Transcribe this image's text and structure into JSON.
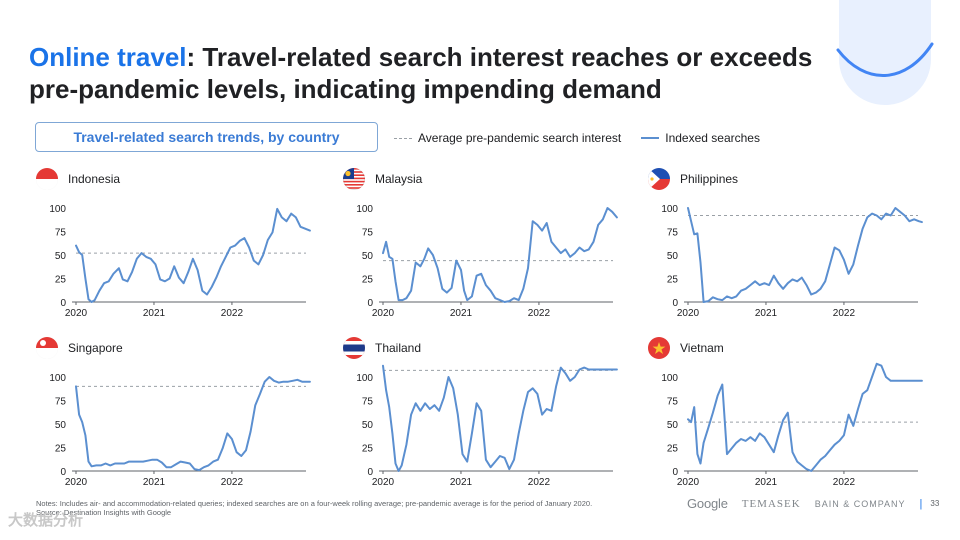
{
  "title": {
    "accent": "Online travel",
    "rest": ": Travel-related search interest reaches or exceeds pre-pandemic levels, indicating impending demand"
  },
  "subtitle": "Travel-related search trends, by country",
  "legend": {
    "average": "Average pre-pandemic search interest",
    "indexed": "Indexed searches"
  },
  "colors": {
    "accent": "#1a73e8",
    "series": "#5b8fd0",
    "baseline": "#9aa0a6"
  },
  "notes": [
    "Notes: Includes air- and accommodation-related queries; indexed searches are on a four-week rolling average; pre-pandemic average is for the period of January 2020.",
    "Source: Destination Insights with Google"
  ],
  "logos": {
    "google": "Google",
    "temasek": "TEMASEK",
    "bain": "BAIN & COMPANY"
  },
  "page_number": "33",
  "watermark": "大数据分析",
  "chart_data": [
    {
      "type": "line",
      "country": "Indonesia",
      "flag": "indonesia",
      "ylim": [
        0,
        100
      ],
      "yticks": [
        "0",
        "25",
        "50",
        "75",
        "100"
      ],
      "xticks": [
        "2020",
        "2021",
        "2022"
      ],
      "baseline": 52,
      "x": [
        2020.0,
        2020.04,
        2020.08,
        2020.12,
        2020.16,
        2020.2,
        2020.24,
        2020.3,
        2020.36,
        2020.42,
        2020.48,
        2020.55,
        2020.6,
        2020.66,
        2020.72,
        2020.78,
        2020.84,
        2020.9,
        2020.96,
        2021.02,
        2021.08,
        2021.14,
        2021.2,
        2021.26,
        2021.32,
        2021.38,
        2021.44,
        2021.5,
        2021.56,
        2021.62,
        2021.68,
        2021.74,
        2021.8,
        2021.86,
        2021.92,
        2021.98,
        2022.04,
        2022.1,
        2022.16,
        2022.22,
        2022.28,
        2022.34,
        2022.4,
        2022.46,
        2022.52,
        2022.58,
        2022.64,
        2022.7,
        2022.76,
        2022.82,
        2022.88,
        2022.94,
        2023.0
      ],
      "y": [
        60,
        53,
        50,
        25,
        3,
        0,
        2,
        12,
        20,
        22,
        30,
        36,
        24,
        22,
        32,
        46,
        52,
        48,
        46,
        40,
        24,
        22,
        25,
        38,
        26,
        20,
        32,
        46,
        34,
        12,
        8,
        16,
        26,
        38,
        48,
        58,
        60,
        65,
        68,
        58,
        44,
        40,
        50,
        66,
        74,
        99,
        90,
        86,
        94,
        90,
        80,
        78,
        76
      ]
    },
    {
      "type": "line",
      "country": "Malaysia",
      "flag": "malaysia",
      "ylim": [
        0,
        100
      ],
      "yticks": [
        "0",
        "25",
        "50",
        "75",
        "100"
      ],
      "xticks": [
        "2020",
        "2021",
        "2022"
      ],
      "baseline": 44,
      "x": [
        2020.0,
        2020.04,
        2020.08,
        2020.12,
        2020.16,
        2020.2,
        2020.25,
        2020.3,
        2020.36,
        2020.42,
        2020.48,
        2020.53,
        2020.58,
        2020.64,
        2020.7,
        2020.76,
        2020.82,
        2020.88,
        2020.94,
        2021.0,
        2021.04,
        2021.08,
        2021.14,
        2021.2,
        2021.26,
        2021.32,
        2021.38,
        2021.44,
        2021.5,
        2021.56,
        2021.62,
        2021.68,
        2021.74,
        2021.8,
        2021.86,
        2021.92,
        2021.98,
        2022.04,
        2022.1,
        2022.16,
        2022.22,
        2022.28,
        2022.34,
        2022.4,
        2022.46,
        2022.52,
        2022.58,
        2022.64,
        2022.7,
        2022.76,
        2022.82,
        2022.88,
        2022.94,
        2023.0
      ],
      "y": [
        52,
        64,
        48,
        46,
        22,
        2,
        2,
        4,
        12,
        42,
        38,
        46,
        57,
        50,
        36,
        14,
        10,
        15,
        44,
        34,
        12,
        2,
        6,
        28,
        30,
        18,
        12,
        4,
        2,
        0,
        1,
        4,
        2,
        14,
        36,
        86,
        82,
        76,
        84,
        64,
        58,
        52,
        56,
        48,
        52,
        58,
        54,
        56,
        64,
        82,
        88,
        100,
        96,
        90
      ]
    },
    {
      "type": "line",
      "country": "Philippines",
      "flag": "philippines",
      "ylim": [
        0,
        100
      ],
      "yticks": [
        "0",
        "25",
        "50",
        "75",
        "100"
      ],
      "xticks": [
        "2020",
        "2021",
        "2022"
      ],
      "baseline": 92,
      "x": [
        2020.0,
        2020.04,
        2020.08,
        2020.12,
        2020.16,
        2020.2,
        2020.26,
        2020.32,
        2020.38,
        2020.44,
        2020.5,
        2020.56,
        2020.62,
        2020.68,
        2020.74,
        2020.8,
        2020.86,
        2020.92,
        2020.98,
        2021.04,
        2021.1,
        2021.16,
        2021.22,
        2021.28,
        2021.34,
        2021.4,
        2021.46,
        2021.52,
        2021.58,
        2021.64,
        2021.7,
        2021.76,
        2021.82,
        2021.88,
        2021.94,
        2022.0,
        2022.06,
        2022.12,
        2022.18,
        2022.24,
        2022.3,
        2022.36,
        2022.42,
        2022.48,
        2022.54,
        2022.6,
        2022.66,
        2022.72,
        2022.78,
        2022.84,
        2022.9,
        2022.96,
        2023.0
      ],
      "y": [
        100,
        86,
        72,
        73,
        42,
        0,
        1,
        5,
        3,
        2,
        6,
        4,
        6,
        12,
        14,
        18,
        22,
        18,
        20,
        18,
        28,
        20,
        14,
        20,
        24,
        22,
        26,
        18,
        8,
        10,
        14,
        22,
        40,
        58,
        55,
        45,
        30,
        40,
        60,
        78,
        90,
        94,
        92,
        88,
        94,
        92,
        100,
        96,
        92,
        86,
        88,
        86,
        85
      ]
    },
    {
      "type": "line",
      "country": "Singapore",
      "flag": "singapore",
      "ylim": [
        0,
        100
      ],
      "yticks": [
        "0",
        "25",
        "50",
        "75",
        "100"
      ],
      "xticks": [
        "2020",
        "2021",
        "2022"
      ],
      "baseline": 90,
      "x": [
        2020.0,
        2020.04,
        2020.08,
        2020.12,
        2020.16,
        2020.2,
        2020.26,
        2020.32,
        2020.38,
        2020.44,
        2020.5,
        2020.56,
        2020.62,
        2020.68,
        2020.74,
        2020.8,
        2020.86,
        2020.92,
        2020.98,
        2021.04,
        2021.1,
        2021.16,
        2021.22,
        2021.28,
        2021.34,
        2021.4,
        2021.46,
        2021.52,
        2021.58,
        2021.64,
        2021.7,
        2021.76,
        2021.82,
        2021.88,
        2021.94,
        2022.0,
        2022.06,
        2022.12,
        2022.18,
        2022.24,
        2022.3,
        2022.36,
        2022.42,
        2022.48,
        2022.54,
        2022.6,
        2022.66,
        2022.72,
        2022.78,
        2022.84,
        2022.9,
        2022.96,
        2023.0
      ],
      "y": [
        90,
        60,
        52,
        38,
        10,
        5,
        6,
        6,
        8,
        6,
        8,
        8,
        8,
        10,
        10,
        10,
        10,
        11,
        12,
        12,
        9,
        4,
        4,
        7,
        10,
        9,
        8,
        2,
        1,
        4,
        6,
        10,
        12,
        24,
        40,
        34,
        20,
        16,
        22,
        42,
        70,
        82,
        95,
        100,
        96,
        94,
        95,
        95,
        96,
        97,
        95,
        95,
        95
      ]
    },
    {
      "type": "line",
      "country": "Thailand",
      "flag": "thailand",
      "ylim": [
        0,
        100
      ],
      "yticks": [
        "0",
        "25",
        "50",
        "75",
        "100"
      ],
      "xticks": [
        "2020",
        "2021",
        "2022"
      ],
      "baseline": 107,
      "x": [
        2020.0,
        2020.04,
        2020.08,
        2020.12,
        2020.16,
        2020.2,
        2020.24,
        2020.3,
        2020.36,
        2020.42,
        2020.48,
        2020.54,
        2020.6,
        2020.66,
        2020.72,
        2020.78,
        2020.84,
        2020.9,
        2020.96,
        2021.02,
        2021.08,
        2021.14,
        2021.2,
        2021.26,
        2021.32,
        2021.38,
        2021.44,
        2021.5,
        2021.56,
        2021.62,
        2021.68,
        2021.74,
        2021.8,
        2021.86,
        2021.92,
        2021.98,
        2022.04,
        2022.1,
        2022.16,
        2022.22,
        2022.28,
        2022.34,
        2022.4,
        2022.46,
        2022.52,
        2022.58,
        2022.64,
        2022.7,
        2022.76,
        2022.82,
        2022.88,
        2022.94,
        2023.0
      ],
      "y": [
        112,
        86,
        68,
        40,
        8,
        0,
        6,
        28,
        60,
        72,
        64,
        72,
        66,
        70,
        64,
        78,
        100,
        88,
        60,
        18,
        10,
        40,
        72,
        64,
        12,
        4,
        10,
        16,
        14,
        2,
        12,
        40,
        64,
        84,
        88,
        82,
        60,
        66,
        64,
        90,
        110,
        104,
        96,
        100,
        108,
        110,
        108,
        108,
        108,
        108,
        108,
        108,
        108
      ]
    },
    {
      "type": "line",
      "country": "Vietnam",
      "flag": "vietnam",
      "ylim": [
        0,
        100
      ],
      "yticks": [
        "0",
        "25",
        "50",
        "75",
        "100"
      ],
      "xticks": [
        "2020",
        "2021",
        "2022"
      ],
      "baseline": 52,
      "x": [
        2020.0,
        2020.04,
        2020.08,
        2020.12,
        2020.16,
        2020.2,
        2020.26,
        2020.32,
        2020.38,
        2020.44,
        2020.5,
        2020.56,
        2020.62,
        2020.68,
        2020.74,
        2020.8,
        2020.86,
        2020.92,
        2020.98,
        2021.04,
        2021.1,
        2021.16,
        2021.22,
        2021.28,
        2021.34,
        2021.4,
        2021.46,
        2021.52,
        2021.58,
        2021.64,
        2021.7,
        2021.76,
        2021.82,
        2021.88,
        2021.94,
        2022.0,
        2022.06,
        2022.12,
        2022.18,
        2022.24,
        2022.3,
        2022.36,
        2022.42,
        2022.48,
        2022.54,
        2022.6,
        2022.66,
        2022.72,
        2022.78,
        2022.84,
        2022.9,
        2022.96,
        2023.0
      ],
      "y": [
        55,
        52,
        68,
        18,
        8,
        30,
        46,
        62,
        80,
        92,
        18,
        24,
        30,
        34,
        32,
        36,
        32,
        40,
        36,
        28,
        20,
        38,
        54,
        62,
        20,
        10,
        6,
        2,
        0,
        6,
        12,
        16,
        22,
        28,
        32,
        38,
        60,
        48,
        66,
        82,
        86,
        100,
        114,
        112,
        100,
        96,
        96,
        96,
        96,
        96,
        96,
        96,
        96
      ]
    }
  ]
}
